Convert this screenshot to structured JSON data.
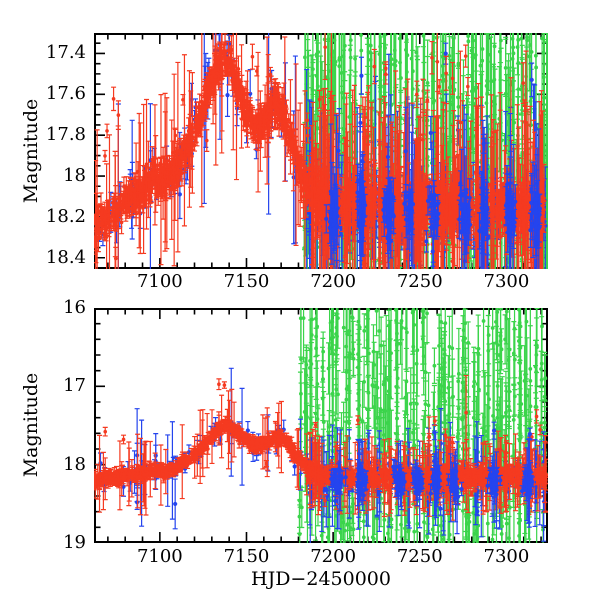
{
  "figure": {
    "xlabel": "HJD−2450000",
    "background": "#ffffff",
    "frame_color": "#000000"
  },
  "chart_data": [
    {
      "type": "scatter",
      "panel": "top",
      "ylabel": "Magnitude",
      "xlim": [
        7062,
        7324
      ],
      "ylim": [
        17.3,
        18.455
      ],
      "y_inverted_magnitude_axis": true,
      "grid": false,
      "legend": "none",
      "xticks": {
        "values": [
          7100,
          7150,
          7200,
          7250,
          7300
        ],
        "labels": [
          "7100",
          "7150",
          "7200",
          "7250",
          "7300"
        ],
        "minor_step": 10
      },
      "yticks": {
        "values": [
          17.4,
          17.6,
          17.8,
          18,
          18.2,
          18.4
        ],
        "labels": [
          "17.4",
          "17.6",
          "17.8",
          "18",
          "18.2",
          "18.4"
        ],
        "minor_step": 0.05
      },
      "model_anchors": [
        [
          7062,
          18.26
        ],
        [
          7068,
          18.22
        ],
        [
          7074,
          18.17
        ],
        [
          7080,
          18.12
        ],
        [
          7086,
          18.09
        ],
        [
          7092,
          18.05
        ],
        [
          7097,
          18.01
        ],
        [
          7100,
          18.0
        ],
        [
          7103,
          18.03
        ],
        [
          7107,
          17.99
        ],
        [
          7111,
          17.95
        ],
        [
          7114,
          17.9
        ],
        [
          7117,
          17.84
        ],
        [
          7120,
          17.78
        ],
        [
          7123,
          17.71
        ],
        [
          7126,
          17.64
        ],
        [
          7129,
          17.57
        ],
        [
          7132,
          17.5
        ],
        [
          7135,
          17.45
        ],
        [
          7138,
          17.41
        ],
        [
          7140,
          17.44
        ],
        [
          7142,
          17.49
        ],
        [
          7145,
          17.56
        ],
        [
          7148,
          17.63
        ],
        [
          7151,
          17.69
        ],
        [
          7154,
          17.73
        ],
        [
          7157,
          17.77
        ],
        [
          7160,
          17.74
        ],
        [
          7163,
          17.69
        ],
        [
          7166,
          17.63
        ],
        [
          7169,
          17.66
        ],
        [
          7172,
          17.72
        ],
        [
          7175,
          17.8
        ],
        [
          7178,
          17.89
        ],
        [
          7181,
          17.97
        ],
        [
          7184,
          18.03
        ],
        [
          7187,
          18.07
        ],
        [
          7191,
          18.1
        ],
        [
          7200,
          18.13
        ],
        [
          7215,
          18.15
        ],
        [
          7235,
          18.15
        ],
        [
          7255,
          18.16
        ],
        [
          7275,
          18.15
        ],
        [
          7295,
          18.16
        ],
        [
          7324,
          18.15
        ]
      ],
      "series": [
        {
          "name": "model-fit",
          "kind": "line",
          "color": "#000000",
          "dash": [
            6,
            5
          ],
          "width": 1.3
        },
        {
          "name": "green-dataset",
          "kind": "scatter",
          "color": "#3bd44b",
          "r": 1.9,
          "bands": [
            {
              "x0": 7183,
              "x1": 7324,
              "n": 520,
              "mode": "clusters",
              "step": 2.6,
              "width": 1.1,
              "y_mode": "uniform",
              "range": [
                17.31,
                18.44
              ],
              "err": [
                0.12,
                0.42
              ],
              "bigf": 0.15,
              "big": [
                0.3,
                0.62
              ]
            }
          ]
        },
        {
          "name": "blue-dataset",
          "kind": "scatter",
          "color": "#2444ee",
          "r": 2.1,
          "bands": [
            {
              "x0": 7064,
              "x1": 7186,
              "n": 80,
              "mode": "clusters",
              "step": 6,
              "width": 3,
              "y_mode": "curve",
              "sigma": 0.07,
              "err": [
                0.04,
                0.12
              ],
              "bigf": 0.15,
              "big": [
                0.2,
                0.6
              ],
              "outf": 0.1,
              "out": [
                -0.35,
                0.45
              ]
            },
            {
              "x0": 7186,
              "x1": 7324,
              "n": 260,
              "mode": "clusters",
              "step": 5,
              "width": 2.5,
              "y_mode": "flat",
              "base": 18.17,
              "sigma": 0.07,
              "err": [
                0.04,
                0.12
              ],
              "bigf": 0.2,
              "big": [
                0.2,
                0.6
              ],
              "outf": 0.07,
              "out": [
                -0.8,
                0.3
              ]
            }
          ]
        },
        {
          "name": "red-dataset",
          "kind": "scatter",
          "color": "#f53a20",
          "r": 1.8,
          "bands": [
            {
              "x0": 7062,
              "x1": 7186,
              "n": 850,
              "mode": "uniform",
              "y_mode": "curve",
              "sigma": 0.035,
              "err": [
                0.02,
                0.07
              ],
              "bigf": 0.07,
              "big": [
                0.15,
                0.5
              ],
              "outf": 0.018,
              "out": [
                -0.7,
                0.3
              ]
            },
            {
              "x0": 7186,
              "x1": 7324,
              "n": 950,
              "mode": "clusters",
              "step": 3,
              "width": 2.3,
              "y_mode": "curve",
              "sigma": 0.055,
              "err": [
                0.03,
                0.1
              ],
              "bigf": 0.3,
              "big": [
                0.12,
                0.55
              ],
              "outf": 0.05,
              "out": [
                -0.8,
                0.3
              ]
            }
          ]
        },
        {
          "name": "blue-dataset-dense",
          "kind": "scatter",
          "color": "#2444ee",
          "r": 2.1,
          "bands": [
            {
              "x0": 7196,
              "x1": 7320,
              "n": 300,
              "mode": "clusters",
              "step": 16,
              "width": 3.5,
              "y_mode": "flat",
              "base": 18.18,
              "sigma": 0.06,
              "err": [
                0.04,
                0.1
              ],
              "bigf": 0.12,
              "big": [
                0.2,
                0.5
              ],
              "outf": 0.04,
              "out": [
                -0.5,
                0.4
              ]
            }
          ]
        }
      ]
    },
    {
      "type": "scatter",
      "panel": "bottom",
      "ylabel": "Magnitude",
      "xlim": [
        7062,
        7324
      ],
      "ylim": [
        16.0,
        19.0
      ],
      "y_inverted_magnitude_axis": true,
      "grid": false,
      "legend": "none",
      "xticks": {
        "values": [
          7100,
          7150,
          7200,
          7250,
          7300
        ],
        "labels": [
          "7100",
          "7150",
          "7200",
          "7250",
          "7300"
        ],
        "minor_step": 10
      },
      "yticks": {
        "values": [
          16,
          17,
          18,
          19
        ],
        "labels": [
          "16",
          "17",
          "18",
          "19"
        ],
        "minor_step": 0.2
      },
      "model_anchors": [
        [
          7062,
          18.21
        ],
        [
          7070,
          18.17
        ],
        [
          7080,
          18.14
        ],
        [
          7090,
          18.11
        ],
        [
          7100,
          18.07
        ],
        [
          7105,
          18.09
        ],
        [
          7110,
          18.02
        ],
        [
          7115,
          17.96
        ],
        [
          7119,
          17.9
        ],
        [
          7123,
          17.82
        ],
        [
          7127,
          17.72
        ],
        [
          7131,
          17.62
        ],
        [
          7135,
          17.53
        ],
        [
          7138,
          17.48
        ],
        [
          7141,
          17.52
        ],
        [
          7144,
          17.58
        ],
        [
          7148,
          17.65
        ],
        [
          7152,
          17.71
        ],
        [
          7156,
          17.76
        ],
        [
          7160,
          17.73
        ],
        [
          7164,
          17.68
        ],
        [
          7168,
          17.64
        ],
        [
          7172,
          17.7
        ],
        [
          7176,
          17.8
        ],
        [
          7180,
          17.92
        ],
        [
          7184,
          18.02
        ],
        [
          7188,
          18.08
        ],
        [
          7195,
          18.12
        ],
        [
          7215,
          18.15
        ],
        [
          7240,
          18.16
        ],
        [
          7265,
          18.16
        ],
        [
          7290,
          18.16
        ],
        [
          7324,
          18.15
        ]
      ],
      "series": [
        {
          "name": "model-fit",
          "kind": "line",
          "color": "#000000",
          "dash": [
            6,
            5
          ],
          "width": 1.3
        },
        {
          "name": "green-dataset",
          "kind": "scatter",
          "color": "#3bd44b",
          "r": 1.9,
          "bands": [
            {
              "x0": 7180,
              "x1": 7324,
              "n": 560,
              "mode": "clusters",
              "step": 2.6,
              "width": 1.1,
              "y_mode": "uniform",
              "range": [
                16.02,
                18.97
              ],
              "err": [
                0.2,
                0.6
              ],
              "bigf": 0.2,
              "big": [
                0.7,
                1.0
              ]
            }
          ]
        },
        {
          "name": "blue-dataset",
          "kind": "scatter",
          "color": "#2444ee",
          "r": 2.1,
          "bands": [
            {
              "x0": 7064,
              "x1": 7186,
              "n": 70,
              "mode": "clusters",
              "step": 6,
              "width": 3,
              "y_mode": "curve",
              "sigma": 0.09,
              "err": [
                0.05,
                0.14
              ],
              "bigf": 0.15,
              "big": [
                0.25,
                0.7
              ],
              "outf": 0.1,
              "out": [
                -0.3,
                0.55
              ]
            },
            {
              "x0": 7186,
              "x1": 7324,
              "n": 240,
              "mode": "clusters",
              "step": 5,
              "width": 2.5,
              "y_mode": "flat",
              "base": 18.2,
              "sigma": 0.09,
              "err": [
                0.05,
                0.14
              ],
              "bigf": 0.2,
              "big": [
                0.25,
                0.7
              ],
              "outf": 0.06,
              "out": [
                -0.6,
                0.6
              ]
            }
          ]
        },
        {
          "name": "red-dataset",
          "kind": "scatter",
          "color": "#f53a20",
          "r": 1.8,
          "bands": [
            {
              "x0": 7062,
              "x1": 7186,
              "n": 800,
              "mode": "uniform",
              "y_mode": "curve",
              "sigma": 0.035,
              "err": [
                0.02,
                0.07
              ],
              "bigf": 0.07,
              "big": [
                0.15,
                0.5
              ],
              "outf": 0.015,
              "out": [
                -0.9,
                0.3
              ]
            },
            {
              "x0": 7186,
              "x1": 7324,
              "n": 900,
              "mode": "clusters",
              "step": 3,
              "width": 2.3,
              "y_mode": "curve",
              "sigma": 0.05,
              "err": [
                0.03,
                0.09
              ],
              "bigf": 0.22,
              "big": [
                0.12,
                0.5
              ],
              "outf": 0.03,
              "out": [
                -0.8,
                0.35
              ]
            }
          ]
        },
        {
          "name": "blue-dataset-dense",
          "kind": "scatter",
          "color": "#2444ee",
          "r": 2.1,
          "bands": [
            {
              "x0": 7196,
              "x1": 7320,
              "n": 260,
              "mode": "clusters",
              "step": 16,
              "width": 3.5,
              "y_mode": "flat",
              "base": 18.2,
              "sigma": 0.08,
              "err": [
                0.05,
                0.12
              ],
              "bigf": 0.12,
              "big": [
                0.2,
                0.6
              ],
              "outf": 0.03,
              "out": [
                -0.5,
                0.5
              ]
            }
          ]
        }
      ]
    }
  ]
}
